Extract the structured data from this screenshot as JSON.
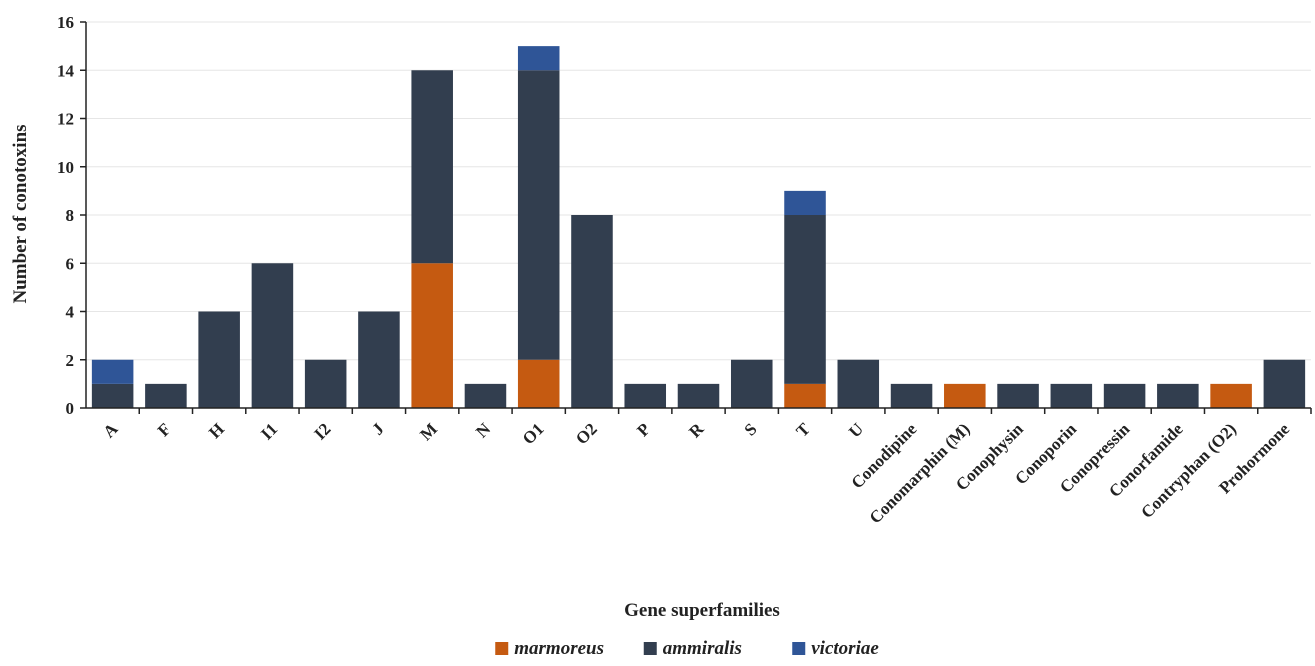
{
  "chart_data": {
    "type": "bar",
    "stacked": true,
    "xlabel": "Gene superfamilies",
    "ylabel": "Number of conotoxins",
    "ylim": [
      0,
      16
    ],
    "yticks": [
      0,
      2,
      4,
      6,
      8,
      10,
      12,
      14,
      16
    ],
    "grid": true,
    "legend_position": "bottom",
    "categories": [
      "A",
      "F",
      "H",
      "I1",
      "I2",
      "J",
      "M",
      "N",
      "O1",
      "O2",
      "P",
      "R",
      "S",
      "T",
      "U",
      "Conodipine",
      "Conomarphin (M)",
      "Conophysin",
      "Conoporin",
      "Conopressin",
      "Conorfamide",
      "Contryphan (O2)",
      "Prohormone"
    ],
    "series": [
      {
        "name": "marmoreus",
        "color": "#c55a11",
        "values": [
          0,
          0,
          0,
          0,
          0,
          0,
          6,
          0,
          2,
          0,
          0,
          0,
          0,
          1,
          0,
          0,
          1,
          0,
          0,
          0,
          0,
          1,
          0
        ]
      },
      {
        "name": "ammiralis",
        "color": "#323e4f",
        "values": [
          1,
          1,
          4,
          6,
          2,
          4,
          8,
          1,
          12,
          8,
          1,
          1,
          2,
          7,
          2,
          1,
          0,
          1,
          1,
          1,
          1,
          0,
          2
        ]
      },
      {
        "name": "victoriae",
        "color": "#2f5597",
        "values": [
          1,
          0,
          0,
          0,
          0,
          0,
          0,
          0,
          1,
          0,
          0,
          0,
          0,
          1,
          0,
          0,
          0,
          0,
          0,
          0,
          0,
          0,
          0
        ]
      }
    ]
  }
}
